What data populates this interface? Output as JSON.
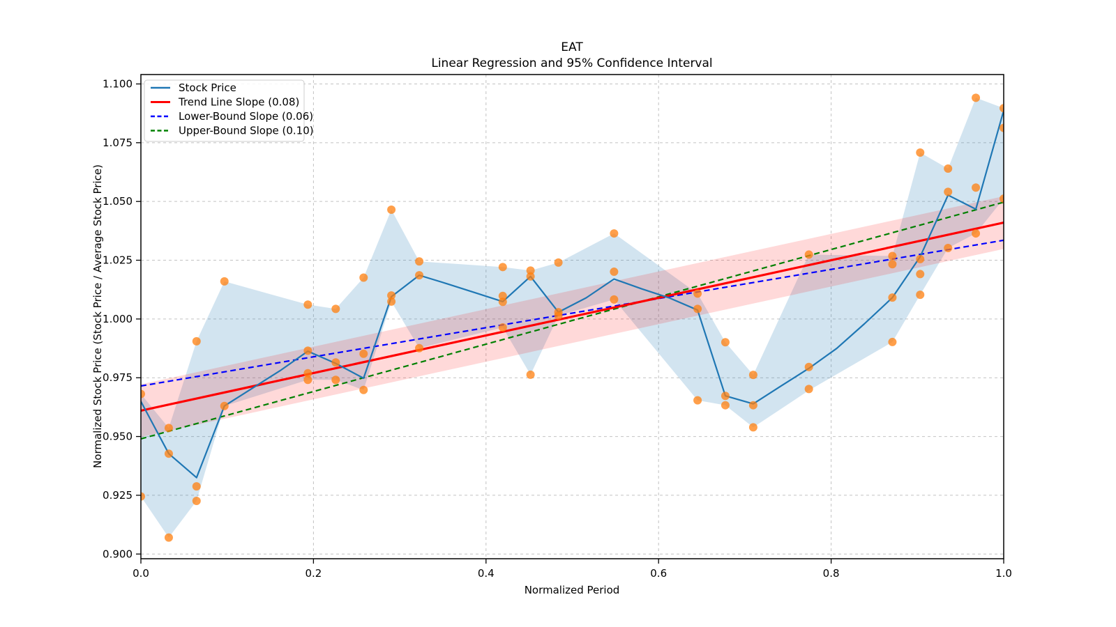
{
  "chart_data": {
    "type": "line+scatter",
    "title": "EAT",
    "subtitle": "Linear Regression and 95% Confidence Interval",
    "xlabel": "Normalized Period",
    "ylabel": "Normalized Stock Price (Stock Price / Average Stock Price)",
    "xlim": [
      0.0,
      1.0
    ],
    "ylim": [
      0.898,
      1.104
    ],
    "grid": true,
    "x_ticks": [
      0.0,
      0.2,
      0.4,
      0.6,
      0.8,
      1.0
    ],
    "x_tick_labels": [
      "0.0",
      "0.2",
      "0.4",
      "0.6",
      "0.8",
      "1.0"
    ],
    "y_ticks": [
      0.9,
      0.925,
      0.95,
      0.975,
      1.0,
      1.025,
      1.05,
      1.075,
      1.1
    ],
    "y_tick_labels": [
      "0.900",
      "0.925",
      "0.950",
      "0.975",
      "1.000",
      "1.025",
      "1.050",
      "1.075",
      "1.100"
    ],
    "colors": {
      "stock_line": "#1f77b4",
      "stock_band": "#1f77b4",
      "scatter": "#ff7f0e",
      "trend": "#ff0000",
      "trend_band": "#ff0000",
      "lower_bound": "#0000ff",
      "upper_bound": "#008000",
      "grid": "#c2c2c2",
      "spine": "#000000"
    },
    "legend": {
      "position": "upper left",
      "items": [
        {
          "label": "Stock Price",
          "color": "#1f77b4",
          "dashed": false
        },
        {
          "label": "Trend Line Slope (0.08)",
          "color": "#ff0000",
          "dashed": false
        },
        {
          "label": "Lower-Bound Slope (0.06)",
          "color": "#0000ff",
          "dashed": true
        },
        {
          "label": "Upper-Bound Slope (0.10)",
          "color": "#008000",
          "dashed": true
        }
      ]
    },
    "stock_price_line": {
      "x": [
        0.0,
        0.0323,
        0.0645,
        0.0968,
        0.129,
        0.1613,
        0.1935,
        0.2258,
        0.2581,
        0.2903,
        0.3226,
        0.3548,
        0.3871,
        0.4194,
        0.4516,
        0.4839,
        0.5161,
        0.5484,
        0.5806,
        0.6129,
        0.6452,
        0.6774,
        0.7097,
        0.7419,
        0.7742,
        0.8065,
        0.8387,
        0.871,
        0.9032,
        0.9355,
        0.9677,
        1.0
      ],
      "y": [
        0.9649,
        0.9427,
        0.9325,
        0.963,
        0.9705,
        0.978,
        0.9863,
        0.9811,
        0.9748,
        1.0095,
        1.0186,
        1.015,
        1.0112,
        1.0074,
        1.0181,
        1.0029,
        1.009,
        1.017,
        1.0128,
        1.0089,
        1.0038,
        0.9673,
        0.9639,
        0.9715,
        0.979,
        0.9875,
        0.998,
        1.0091,
        1.0265,
        1.0527,
        1.0467,
        1.0887
      ]
    },
    "stock_price_band": {
      "alpha": 0.2,
      "x": [
        0.0,
        0.0323,
        0.0645,
        0.0968,
        0.1935,
        0.2258,
        0.2581,
        0.2903,
        0.3226,
        0.4194,
        0.4516,
        0.4839,
        0.5484,
        0.6452,
        0.6774,
        0.7097,
        0.7742,
        0.871,
        0.9032,
        0.9355,
        0.9677,
        1.0
      ],
      "upper": [
        0.9681,
        0.9536,
        0.9905,
        1.016,
        1.0061,
        1.0043,
        1.0176,
        1.0465,
        1.0245,
        1.0221,
        1.0206,
        1.024,
        1.0364,
        1.0108,
        0.9901,
        0.9762,
        1.0274,
        1.0268,
        1.0708,
        1.064,
        1.0941,
        1.0897
      ],
      "lower": [
        0.9245,
        0.907,
        0.9226,
        0.963,
        0.9741,
        0.9741,
        0.9698,
        1.0074,
        0.9876,
        0.9964,
        0.9763,
        1.0014,
        1.0083,
        0.9654,
        0.9633,
        0.9539,
        0.9696,
        0.9902,
        1.0103,
        1.0302,
        1.0364,
        1.0512
      ]
    },
    "scatter": {
      "alpha": 0.75,
      "points": [
        [
          0.0,
          0.9681
        ],
        [
          0.0,
          0.9245
        ],
        [
          0.0323,
          0.9536
        ],
        [
          0.0323,
          0.9427
        ],
        [
          0.0323,
          0.907
        ],
        [
          0.0645,
          0.9905
        ],
        [
          0.0645,
          0.9288
        ],
        [
          0.0645,
          0.9226
        ],
        [
          0.0968,
          1.016
        ],
        [
          0.0968,
          0.963
        ],
        [
          0.1935,
          1.0061
        ],
        [
          0.1935,
          0.9865
        ],
        [
          0.1935,
          0.9769
        ],
        [
          0.1935,
          0.9741
        ],
        [
          0.2258,
          1.0043
        ],
        [
          0.2258,
          0.9815
        ],
        [
          0.2258,
          0.9741
        ],
        [
          0.2581,
          1.0176
        ],
        [
          0.2581,
          0.9852
        ],
        [
          0.2581,
          0.9698
        ],
        [
          0.2903,
          1.0465
        ],
        [
          0.2903,
          1.01
        ],
        [
          0.2903,
          1.0074
        ],
        [
          0.3226,
          1.0245
        ],
        [
          0.3226,
          1.0186
        ],
        [
          0.3226,
          0.9876
        ],
        [
          0.4194,
          1.0221
        ],
        [
          0.4194,
          1.0098
        ],
        [
          0.4194,
          1.0073
        ],
        [
          0.4194,
          0.9964
        ],
        [
          0.4516,
          1.0206
        ],
        [
          0.4516,
          1.0181
        ],
        [
          0.4516,
          0.9763
        ],
        [
          0.4839,
          1.024
        ],
        [
          0.4839,
          1.0029
        ],
        [
          0.4839,
          1.0014
        ],
        [
          0.5484,
          1.0364
        ],
        [
          0.5484,
          1.0201
        ],
        [
          0.5484,
          1.0083
        ],
        [
          0.6452,
          1.0108
        ],
        [
          0.6452,
          1.0043
        ],
        [
          0.6452,
          0.9654
        ],
        [
          0.6774,
          0.9901
        ],
        [
          0.6774,
          0.9673
        ],
        [
          0.6774,
          0.9633
        ],
        [
          0.7097,
          0.9762
        ],
        [
          0.7097,
          0.9633
        ],
        [
          0.7097,
          0.9539
        ],
        [
          0.7742,
          1.0274
        ],
        [
          0.7742,
          0.9796
        ],
        [
          0.7742,
          0.9702
        ],
        [
          0.871,
          1.0268
        ],
        [
          0.871,
          1.0233
        ],
        [
          0.871,
          1.0091
        ],
        [
          0.871,
          0.9902
        ],
        [
          0.9032,
          1.0708
        ],
        [
          0.9032,
          1.0255
        ],
        [
          0.9032,
          1.0191
        ],
        [
          0.9032,
          1.0103
        ],
        [
          0.9355,
          1.064
        ],
        [
          0.9355,
          1.0541
        ],
        [
          0.9355,
          1.0302
        ],
        [
          0.9677,
          1.0941
        ],
        [
          0.9677,
          1.0559
        ],
        [
          0.9677,
          1.0364
        ],
        [
          1.0,
          1.0897
        ],
        [
          1.0,
          1.0813
        ],
        [
          1.0,
          1.0512
        ]
      ]
    },
    "trend_line": {
      "slope": 0.08,
      "x": [
        0.0,
        1.0
      ],
      "y": [
        0.961,
        1.041
      ],
      "ci_half_width": 0.0112,
      "ci_alpha": 0.15
    },
    "lower_bound_line": {
      "slope": 0.06,
      "x": [
        0.0,
        1.0
      ],
      "y": [
        0.9715,
        1.0335
      ]
    },
    "upper_bound_line": {
      "slope": 0.1,
      "x": [
        0.0,
        1.0
      ],
      "y": [
        0.949,
        1.0497
      ]
    }
  }
}
